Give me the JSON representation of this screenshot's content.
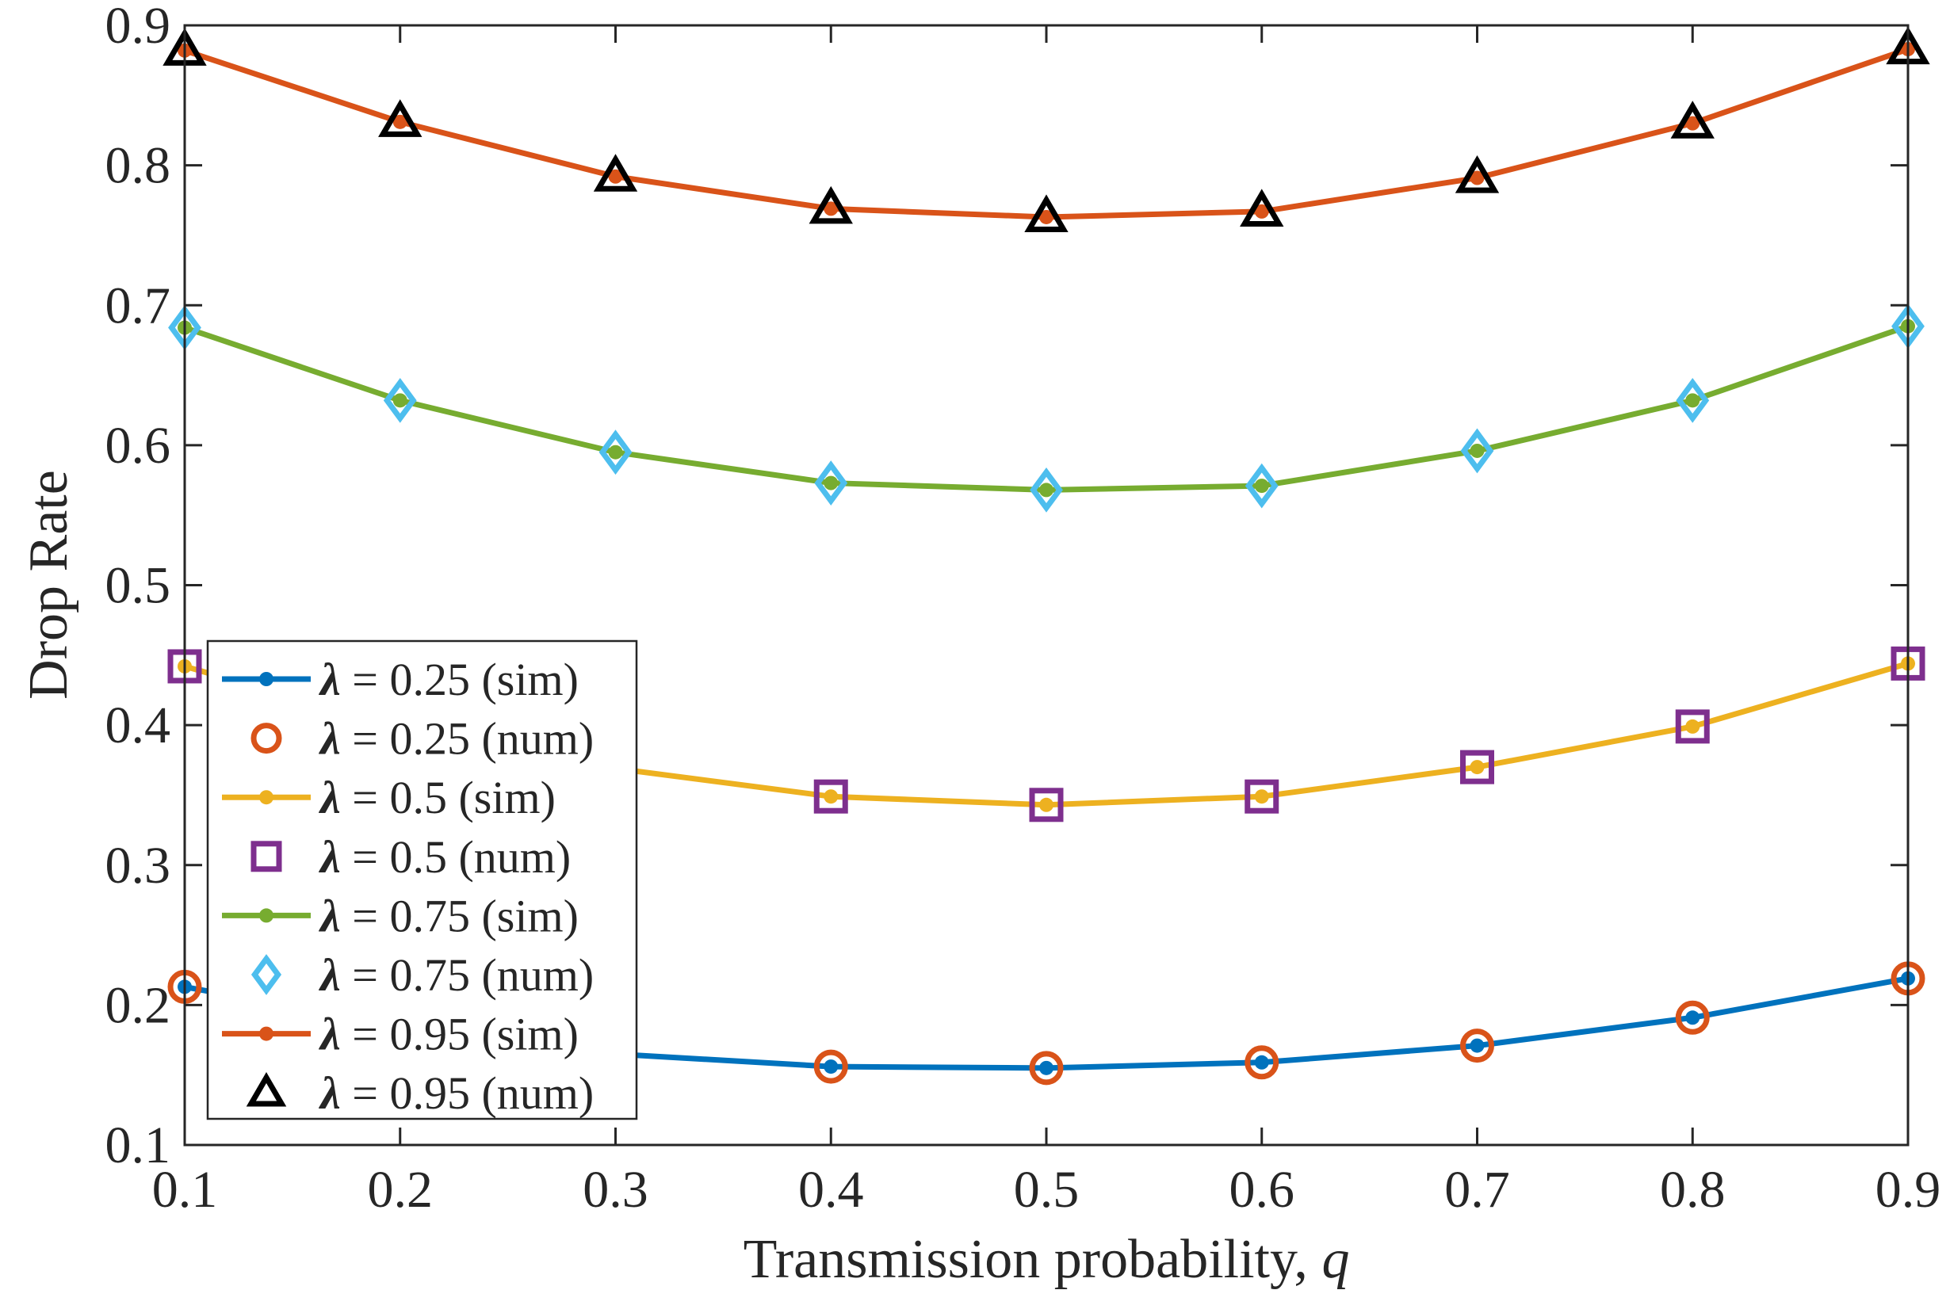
{
  "chart_data": {
    "type": "line",
    "xlabel": "Transmission probability, ",
    "xlabel_var": "q",
    "ylabel": "Drop Rate",
    "xlim": [
      0.1,
      0.9
    ],
    "ylim": [
      0.1,
      0.9
    ],
    "xticks": [
      "0.1",
      "0.2",
      "0.3",
      "0.4",
      "0.5",
      "0.6",
      "0.7",
      "0.8",
      "0.9"
    ],
    "yticks": [
      "0.1",
      "0.2",
      "0.3",
      "0.4",
      "0.5",
      "0.6",
      "0.7",
      "0.8",
      "0.9"
    ],
    "grid": false,
    "legend_position": "bottom-left",
    "x": [
      0.1,
      0.2,
      0.3,
      0.4,
      0.5,
      0.6,
      0.7,
      0.8,
      0.9
    ],
    "series": [
      {
        "name": "= 0.25 (sim)",
        "kind": "sim",
        "color": "#0072BD",
        "values": [
          0.213,
          0.184,
          0.165,
          0.156,
          0.155,
          0.159,
          0.171,
          0.191,
          0.219
        ]
      },
      {
        "name": "= 0.25 (num)",
        "kind": "num",
        "marker": "circle",
        "color": "#D95319",
        "values": [
          0.213,
          0.184,
          0.165,
          0.156,
          0.155,
          0.159,
          0.171,
          0.191,
          0.219
        ]
      },
      {
        "name": "= 0.5 (sim)",
        "kind": "sim",
        "color": "#EDB120",
        "values": [
          0.442,
          0.398,
          0.369,
          0.349,
          0.343,
          0.349,
          0.37,
          0.399,
          0.444
        ]
      },
      {
        "name": "= 0.5 (num)",
        "kind": "num",
        "marker": "square",
        "color": "#7E2F8E",
        "values": [
          0.442,
          0.398,
          0.369,
          0.349,
          0.343,
          0.349,
          0.37,
          0.399,
          0.444
        ]
      },
      {
        "name": "= 0.75 (sim)",
        "kind": "sim",
        "color": "#77AC30",
        "values": [
          0.684,
          0.632,
          0.595,
          0.573,
          0.568,
          0.571,
          0.596,
          0.632,
          0.685
        ]
      },
      {
        "name": "= 0.75 (num)",
        "kind": "num",
        "marker": "diamond",
        "color": "#4DBEEE",
        "values": [
          0.684,
          0.632,
          0.595,
          0.573,
          0.568,
          0.571,
          0.596,
          0.632,
          0.685
        ]
      },
      {
        "name": "= 0.95 (sim)",
        "kind": "sim",
        "color": "#D95319",
        "values": [
          0.882,
          0.831,
          0.792,
          0.769,
          0.763,
          0.767,
          0.791,
          0.83,
          0.883
        ]
      },
      {
        "name": "= 0.95 (num)",
        "kind": "num",
        "marker": "triangle",
        "color": "#000000",
        "values": [
          0.882,
          0.831,
          0.792,
          0.769,
          0.763,
          0.767,
          0.791,
          0.83,
          0.883
        ]
      }
    ],
    "legend_symbol": "λ"
  }
}
